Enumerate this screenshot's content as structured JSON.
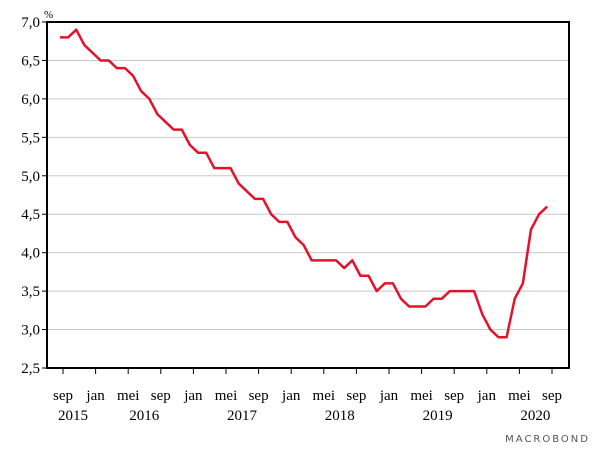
{
  "chart_data": {
    "type": "line",
    "title": "",
    "xlabel": "",
    "ylabel": "",
    "unit": "%",
    "ylim": [
      2.5,
      7.0
    ],
    "yticks": [
      "7,0",
      "6,5",
      "6,0",
      "5,5",
      "5,0",
      "4,5",
      "4,0",
      "3,5",
      "3,0",
      "2,5"
    ],
    "xticks": [
      {
        "label": "sep",
        "year": "2015"
      },
      {
        "label": "jan",
        "year": ""
      },
      {
        "label": "mei",
        "year": "2016"
      },
      {
        "label": "sep",
        "year": ""
      },
      {
        "label": "jan",
        "year": ""
      },
      {
        "label": "mei",
        "year": "2017"
      },
      {
        "label": "sep",
        "year": ""
      },
      {
        "label": "jan",
        "year": ""
      },
      {
        "label": "mei",
        "year": "2018"
      },
      {
        "label": "sep",
        "year": ""
      },
      {
        "label": "jan",
        "year": ""
      },
      {
        "label": "mei",
        "year": "2019"
      },
      {
        "label": "sep",
        "year": ""
      },
      {
        "label": "jan",
        "year": ""
      },
      {
        "label": "mei",
        "year": "2020"
      },
      {
        "label": "sep",
        "year": ""
      }
    ],
    "grid": true,
    "series": [
      {
        "color": "#e4112b",
        "values": [
          6.8,
          6.8,
          6.9,
          6.7,
          6.6,
          6.5,
          6.5,
          6.4,
          6.4,
          6.3,
          6.1,
          6.0,
          5.8,
          5.7,
          5.6,
          5.6,
          5.4,
          5.3,
          5.3,
          5.1,
          5.1,
          5.1,
          4.9,
          4.8,
          4.7,
          4.7,
          4.5,
          4.4,
          4.4,
          4.2,
          4.1,
          3.9,
          3.9,
          3.9,
          3.9,
          3.8,
          3.9,
          3.7,
          3.7,
          3.5,
          3.6,
          3.6,
          3.4,
          3.3,
          3.3,
          3.3,
          3.4,
          3.4,
          3.5,
          3.5,
          3.5,
          3.5,
          3.2,
          3.0,
          2.9,
          2.9,
          3.4,
          3.6,
          4.3,
          4.5,
          4.6
        ]
      }
    ]
  },
  "branding": "MACROBOND"
}
